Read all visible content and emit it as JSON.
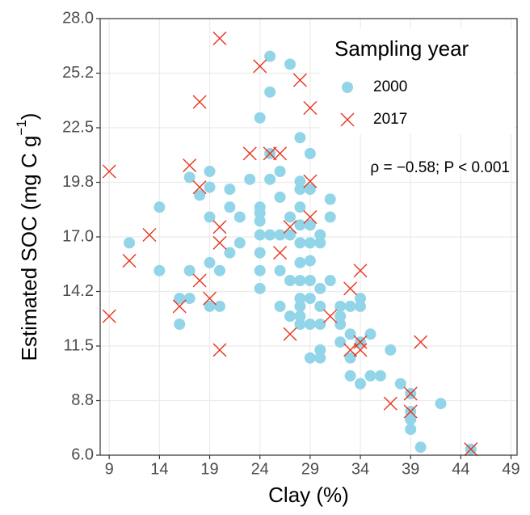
{
  "chart_data": {
    "type": "scatter",
    "xlabel": "Clay (%)",
    "ylabel": [
      "Estimated SOC (mg C g",
      "−1",
      ")"
    ],
    "annotation": "ρ = −0.58; P < 0.001",
    "legend_title": "Sampling year",
    "legend": "top-right",
    "grid": true,
    "xlim": [
      8.1,
      49.6
    ],
    "ylim": [
      6,
      28
    ],
    "xticks": [
      9,
      14,
      19,
      24,
      29,
      34,
      39,
      44,
      49
    ],
    "yticks": [
      {
        "value": 6,
        "label": "6.0"
      },
      {
        "value": 8.75,
        "label": "8.8"
      },
      {
        "value": 11.5,
        "label": "11.5"
      },
      {
        "value": 14.25,
        "label": "14.2"
      },
      {
        "value": 17,
        "label": "17.0"
      },
      {
        "value": 19.75,
        "label": "19.8"
      },
      {
        "value": 22.5,
        "label": "22.5"
      },
      {
        "value": 25.25,
        "label": "25.2"
      },
      {
        "value": 28,
        "label": "28.0"
      }
    ],
    "series": [
      {
        "name": "2000",
        "color": "#92d5e8",
        "marker": "circle",
        "x": [
          11,
          14,
          14,
          16,
          16,
          17,
          17,
          17,
          18,
          19,
          19,
          19,
          19,
          19,
          20,
          20,
          21,
          21,
          21,
          22,
          22,
          23,
          24,
          24,
          24,
          24,
          24,
          24,
          24,
          24,
          25,
          25,
          25,
          25,
          25,
          26,
          26,
          26,
          26,
          26,
          27,
          27,
          27,
          27,
          27,
          28,
          28,
          28,
          28,
          28,
          28,
          28,
          28,
          28,
          28,
          28,
          28,
          29,
          29,
          29,
          29,
          29,
          29,
          29,
          29,
          29,
          30,
          30,
          30,
          30,
          30,
          30,
          30,
          31,
          31,
          31,
          32,
          32,
          32,
          32,
          33,
          33,
          33,
          33,
          34,
          34,
          34,
          34,
          35,
          35,
          36,
          37,
          38,
          39,
          39,
          39,
          39,
          40,
          42,
          45
        ],
        "values": [
          16.7,
          18.5,
          15.3,
          13.9,
          12.6,
          20.0,
          15.3,
          13.9,
          19.1,
          20.3,
          19.5,
          18.0,
          15.7,
          13.5,
          15.3,
          13.5,
          19.4,
          18.5,
          16.2,
          18.0,
          16.7,
          19.9,
          23.0,
          18.5,
          18.2,
          17.8,
          17.1,
          16.2,
          15.3,
          14.4,
          26.1,
          24.3,
          21.2,
          19.9,
          17.1,
          20.3,
          19.0,
          17.1,
          15.3,
          13.5,
          25.7,
          18.0,
          17.1,
          14.8,
          13.0,
          22.0,
          19.8,
          19.4,
          18.5,
          17.6,
          16.7,
          15.7,
          14.8,
          13.9,
          13.5,
          13.0,
          12.6,
          21.2,
          19.4,
          17.6,
          16.7,
          15.8,
          14.8,
          13.9,
          12.6,
          10.9,
          17.1,
          16.7,
          14.4,
          13.5,
          12.6,
          11.3,
          10.9,
          18.9,
          18.0,
          14.8,
          13.5,
          13.0,
          12.6,
          11.7,
          13.5,
          12.1,
          10.9,
          10.0,
          13.9,
          13.5,
          11.7,
          9.6,
          12.1,
          10.0,
          10.0,
          11.3,
          9.6,
          9.1,
          8.2,
          7.8,
          7.3,
          6.4,
          8.6,
          6.3
        ]
      },
      {
        "name": "2017",
        "color": "#e8341c",
        "marker": "cross",
        "x": [
          9,
          9,
          11,
          13,
          16,
          17,
          18,
          18,
          18,
          19,
          20,
          20,
          20,
          20,
          23,
          24,
          25,
          26,
          26,
          27,
          27,
          28,
          29,
          29,
          29,
          31,
          33,
          33,
          34,
          34,
          34,
          37,
          39,
          39,
          40,
          45
        ],
        "values": [
          20.3,
          13.0,
          15.8,
          17.1,
          13.5,
          20.6,
          23.8,
          19.5,
          14.8,
          13.9,
          27.0,
          17.5,
          16.7,
          11.3,
          21.2,
          25.6,
          21.2,
          21.2,
          16.2,
          17.5,
          12.1,
          24.9,
          23.5,
          19.8,
          18.0,
          13.0,
          14.4,
          11.3,
          15.3,
          11.7,
          11.3,
          8.6,
          9.1,
          8.2,
          11.7,
          6.3
        ]
      }
    ]
  }
}
